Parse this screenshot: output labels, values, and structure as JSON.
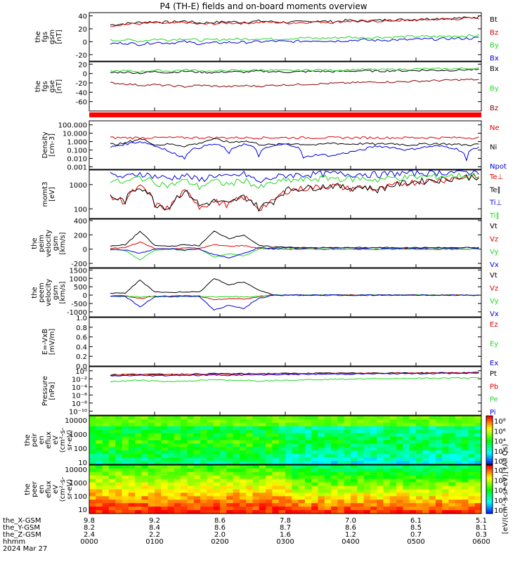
{
  "title": "P4 (TH-E) fields and on-board moments overview",
  "colors": {
    "black": "#000000",
    "red": "#e00000",
    "green": "#22d822",
    "blue": "#0000e0",
    "darkred": "#8b0000"
  },
  "chart_data": [
    {
      "type": "line",
      "id": "fgs_gsm",
      "ylabel": [
        "the",
        "fgs",
        "gsm",
        "[nT]"
      ],
      "ylim": [
        -30,
        45
      ],
      "yticks": [
        "40",
        "20",
        "0",
        "-20"
      ],
      "ytick_values": [
        40,
        20,
        0,
        -20
      ],
      "series": [
        {
          "name": "Bt",
          "color": "black",
          "values": [
            26,
            28,
            30,
            31,
            30,
            32,
            29,
            30,
            31,
            30,
            32,
            31,
            30,
            31,
            32,
            31,
            33,
            32,
            33,
            34,
            34,
            35,
            36,
            36,
            37,
            38
          ]
        },
        {
          "name": "Bz",
          "color": "red",
          "values": [
            25,
            27,
            28,
            29,
            28,
            30,
            27,
            28,
            29,
            29,
            30,
            30,
            29,
            30,
            31,
            30,
            32,
            31,
            32,
            33,
            33,
            34,
            35,
            35,
            36,
            37
          ]
        },
        {
          "name": "By",
          "color": "green",
          "values": [
            2,
            3,
            1,
            4,
            3,
            5,
            2,
            3,
            4,
            4,
            5,
            4,
            5,
            6,
            5,
            6,
            7,
            6,
            7,
            7,
            8,
            8,
            8,
            9,
            9,
            10
          ]
        },
        {
          "name": "Bx",
          "color": "blue",
          "values": [
            -3,
            -2,
            -4,
            -1,
            -2,
            0,
            -3,
            -2,
            -1,
            -1,
            0,
            1,
            0,
            1,
            2,
            1,
            2,
            3,
            2,
            3,
            3,
            4,
            4,
            5,
            5,
            6
          ]
        }
      ]
    },
    {
      "type": "line",
      "id": "fgs_gse",
      "ylabel": [
        "the",
        "fgs",
        "gse",
        "[nT]"
      ],
      "ylim": [
        -80,
        25
      ],
      "yticks": [
        "20",
        "0",
        "-20",
        "-40",
        "-60"
      ],
      "ytick_values": [
        20,
        0,
        -20,
        -40,
        -60
      ],
      "series": [
        {
          "name": "Bx",
          "color": "black",
          "values": [
            2,
            3,
            1,
            4,
            2,
            5,
            3,
            2,
            4,
            3,
            5,
            4,
            3,
            4,
            5,
            4,
            5,
            6,
            5,
            6,
            6,
            7,
            7,
            7,
            8,
            8
          ]
        },
        {
          "name": "By",
          "color": "green",
          "values": [
            5,
            6,
            4,
            7,
            5,
            8,
            6,
            5,
            7,
            6,
            8,
            7,
            6,
            7,
            8,
            7,
            8,
            9,
            8,
            9,
            9,
            10,
            10,
            10,
            11,
            11
          ]
        },
        {
          "name": "Bz",
          "color": "darkred",
          "values": [
            -20,
            -22,
            -25,
            -24,
            -26,
            -28,
            -25,
            -27,
            -28,
            -26,
            -27,
            -25,
            -24,
            -23,
            -22,
            -21,
            -20,
            -19,
            -18,
            -18,
            -17,
            -16,
            -15,
            -14,
            -13,
            -13
          ]
        }
      ]
    },
    {
      "type": "line",
      "id": "density",
      "ylabel": [
        "Density",
        "[cm-3]"
      ],
      "log": true,
      "ylim": [
        0.0005,
        300
      ],
      "yticks": [
        "100.000",
        "10.000",
        "1.000",
        "0.100",
        "0.010",
        "0.001"
      ],
      "ytick_values": [
        100,
        10,
        1,
        0.1,
        0.01,
        0.001
      ],
      "series": [
        {
          "name": "Ne",
          "color": "red",
          "values": [
            3,
            3,
            3,
            3,
            3,
            3,
            3,
            3,
            3,
            3,
            3,
            3,
            3,
            3,
            3,
            3,
            3,
            3,
            3,
            3,
            3,
            3,
            3,
            3,
            3,
            3
          ]
        },
        {
          "name": "Ni",
          "color": "black",
          "values": [
            0.5,
            0.6,
            2,
            0.4,
            0.5,
            0.3,
            0.6,
            2,
            0.8,
            1.2,
            0.5,
            0.4,
            0.6,
            0.5,
            0.4,
            0.7,
            0.5,
            0.6,
            0.5,
            0.6,
            0.4,
            0.5,
            0.6,
            0.5,
            0.4,
            0.5
          ]
        },
        {
          "name": "Npot",
          "color": "blue",
          "values": [
            0.2,
            0.5,
            1,
            0.3,
            0.05,
            0.01,
            0.2,
            0.5,
            0.03,
            0.5,
            0.02,
            0.3,
            0.5,
            0.01,
            0.03,
            0.02,
            0.05,
            0.1,
            0.3,
            0.2,
            0.1,
            0.2,
            0.3,
            0.2,
            0.005,
            0.3
          ]
        }
      ]
    },
    {
      "type": "line",
      "id": "mom_t",
      "ylabel": [
        "momt3",
        "[eV]"
      ],
      "log": true,
      "ylim": [
        40,
        4000
      ],
      "yticks": [
        "1000",
        "100"
      ],
      "ytick_values": [
        1000,
        100
      ],
      "series": [
        {
          "name": "Te⊥",
          "color": "red",
          "values": [
            300,
            200,
            800,
            150,
            100,
            500,
            120,
            200,
            150,
            300,
            100,
            200,
            600,
            700,
            800,
            900,
            700,
            800,
            600,
            900,
            1200,
            1400,
            1500,
            1800,
            2000,
            2100
          ]
        },
        {
          "name": "Te∥",
          "color": "black",
          "values": [
            320,
            210,
            850,
            160,
            110,
            520,
            130,
            210,
            160,
            320,
            110,
            210,
            650,
            720,
            820,
            950,
            720,
            830,
            620,
            940,
            1250,
            1450,
            1550,
            1850,
            2100,
            2200
          ]
        },
        {
          "name": "Ti⊥",
          "color": "blue",
          "values": [
            2500,
            2000,
            3000,
            2200,
            1800,
            2500,
            1500,
            2500,
            2000,
            2800,
            1200,
            2000,
            2500,
            2600,
            2800,
            2900,
            2700,
            2800,
            2600,
            2900,
            3000,
            3100,
            3200,
            3300,
            3400,
            3500
          ]
        },
        {
          "name": "Ti∥",
          "color": "green",
          "values": [
            1500,
            1200,
            2000,
            1300,
            900,
            1500,
            800,
            1400,
            1000,
            1600,
            700,
            1200,
            1500,
            1600,
            1800,
            1900,
            1700,
            1800,
            1600,
            1900,
            2000,
            2100,
            2200,
            2300,
            2400,
            2500
          ]
        }
      ]
    },
    {
      "type": "line",
      "id": "peim_v",
      "ylabel": [
        "the",
        "peim",
        "velocity",
        "gsm",
        "[km/s]"
      ],
      "ylim": [
        -260,
        420
      ],
      "yticks": [
        "400",
        "200",
        "0",
        "-200"
      ],
      "ytick_values": [
        400,
        200,
        0,
        -200
      ],
      "series": [
        {
          "name": "Vt",
          "color": "black",
          "values": [
            40,
            60,
            250,
            50,
            40,
            60,
            50,
            250,
            150,
            200,
            50,
            30,
            30,
            20,
            20,
            20,
            20,
            20,
            20,
            20,
            20,
            20,
            20,
            20,
            20,
            20
          ]
        },
        {
          "name": "Vz",
          "color": "red",
          "values": [
            10,
            20,
            100,
            10,
            0,
            20,
            10,
            60,
            40,
            50,
            10,
            0,
            0,
            0,
            0,
            0,
            0,
            0,
            0,
            0,
            0,
            0,
            0,
            0,
            0,
            0
          ]
        },
        {
          "name": "Vy",
          "color": "green",
          "values": [
            0,
            -20,
            -150,
            -10,
            0,
            -20,
            10,
            -120,
            -60,
            -100,
            0,
            10,
            0,
            10,
            0,
            0,
            0,
            0,
            0,
            0,
            0,
            0,
            0,
            0,
            0,
            0
          ]
        },
        {
          "name": "Vx",
          "color": "blue",
          "values": [
            -5,
            -10,
            -60,
            0,
            5,
            -10,
            0,
            -80,
            -120,
            -60,
            20,
            10,
            20,
            10,
            20,
            10,
            20,
            10,
            20,
            10,
            20,
            10,
            20,
            10,
            20,
            10
          ]
        }
      ]
    },
    {
      "type": "line",
      "id": "peem_v",
      "ylabel": [
        "the",
        "peem",
        "velocity",
        "gsm",
        "[km/s]"
      ],
      "ylim": [
        -1300,
        1600
      ],
      "yticks": [
        "1500",
        "1000",
        "500",
        "0",
        "-500",
        "-1000"
      ],
      "ytick_values": [
        1500,
        1000,
        500,
        0,
        -500,
        -1000
      ],
      "series": [
        {
          "name": "Vt",
          "color": "black",
          "values": [
            100,
            120,
            900,
            200,
            150,
            200,
            180,
            1000,
            600,
            800,
            300,
            0,
            0,
            0,
            0,
            0,
            0,
            0,
            0,
            0,
            0,
            0,
            0,
            0,
            0,
            0
          ]
        },
        {
          "name": "Vz",
          "color": "red",
          "values": [
            -50,
            -40,
            -200,
            -50,
            -60,
            -40,
            -60,
            -300,
            -200,
            -250,
            -100,
            0,
            0,
            0,
            0,
            0,
            0,
            0,
            0,
            0,
            0,
            0,
            0,
            0,
            0,
            0
          ]
        },
        {
          "name": "Vy",
          "color": "green",
          "values": [
            -80,
            -60,
            -100,
            -60,
            -80,
            -60,
            -80,
            -100,
            -90,
            -100,
            -70,
            0,
            0,
            0,
            0,
            0,
            0,
            0,
            0,
            0,
            0,
            0,
            0,
            0,
            0,
            0
          ]
        },
        {
          "name": "Vx",
          "color": "blue",
          "values": [
            -100,
            -80,
            -700,
            -100,
            -90,
            -80,
            -100,
            -900,
            -600,
            -800,
            -200,
            0,
            0,
            0,
            0,
            0,
            0,
            0,
            0,
            0,
            0,
            0,
            0,
            0,
            0,
            0
          ]
        }
      ]
    },
    {
      "type": "line",
      "id": "efield",
      "ylabel": [
        "E=-VxB",
        "[mV/m]"
      ],
      "ylim": [
        0,
        1
      ],
      "yticks": [
        "1.0",
        "0.8",
        "0.6",
        "0.4",
        "0.2",
        "0.0"
      ],
      "ytick_values": [
        1,
        0.8,
        0.6,
        0.4,
        0.2,
        0
      ],
      "series": [
        {
          "name": "Ez",
          "color": "red",
          "values": []
        },
        {
          "name": "Ey",
          "color": "green",
          "values": []
        },
        {
          "name": "Ex",
          "color": "blue",
          "values": []
        }
      ]
    },
    {
      "type": "line",
      "id": "pressure",
      "ylabel": [
        "Pressure",
        "[nPa]"
      ],
      "log": true,
      "ylim": [
        1e-11,
        10
      ],
      "yticks": [
        "10⁰",
        "10⁻²",
        "10⁻⁴",
        "10⁻⁶",
        "10⁻⁸",
        "10⁻¹⁰"
      ],
      "ytick_values": [
        1,
        0.01,
        0.0001,
        1e-06,
        1e-08,
        1e-10
      ],
      "series": [
        {
          "name": "Pt",
          "color": "black",
          "values": [
            0.1,
            0.12,
            0.15,
            0.13,
            0.14,
            0.15,
            0.16,
            0.2,
            0.18,
            0.19,
            0.2,
            0.21,
            0.22,
            0.23,
            0.24,
            0.25,
            0.26,
            0.27,
            0.28,
            0.29,
            0.3,
            0.31,
            0.32,
            0.33,
            0.34,
            0.35
          ]
        },
        {
          "name": "Pb",
          "color": "red",
          "values": [
            0.08,
            0.1,
            0.12,
            0.1,
            0.11,
            0.12,
            0.13,
            0.15,
            0.14,
            0.15,
            0.16,
            0.17,
            0.18,
            0.19,
            0.2,
            0.21,
            0.22,
            0.23,
            0.24,
            0.25,
            0.26,
            0.27,
            0.28,
            0.29,
            0.3,
            0.31
          ]
        },
        {
          "name": "Pe",
          "color": "green",
          "values": [
            0.002,
            0.003,
            0.005,
            0.003,
            0.002,
            0.003,
            0.004,
            0.006,
            0.004,
            0.005,
            0.003,
            0.004,
            0.005,
            0.006,
            0.007,
            0.008,
            0.009,
            0.01,
            0.011,
            0.012,
            0.013,
            0.014,
            0.015,
            0.016,
            0.017,
            0.018
          ]
        },
        {
          "name": "Pi",
          "color": "blue",
          "values": [
            0.05,
            0.06,
            0.07,
            0.06,
            0.07,
            0.08,
            0.07,
            0.09,
            0.08,
            0.09,
            0.1,
            0.11,
            0.12,
            0.13,
            0.14,
            0.15,
            0.16,
            0.17,
            0.18,
            0.19,
            0.2,
            0.21,
            0.22,
            0.23,
            0.24,
            0.25
          ]
        }
      ]
    },
    {
      "type": "heatmap",
      "id": "peir",
      "ylabel": [
        "the",
        "peir",
        "en",
        "eflux",
        "eV",
        "(cm²-s-",
        "sr-eV)"
      ],
      "log": true,
      "ylim": [
        7,
        20000
      ],
      "yticks": [
        "10000",
        "1000",
        "100",
        "10"
      ],
      "ytick_values": [
        10000,
        1000,
        100,
        10
      ],
      "colorbar": [
        "10⁸",
        "10⁶",
        "10⁴",
        "10²",
        "10⁰"
      ],
      "colorbar_label": "[eV/(cm²-s-sr-eV)] (All Qs)"
    },
    {
      "type": "heatmap",
      "id": "peer",
      "ylabel": [
        "the",
        "peer",
        "en",
        "eflux",
        "eV",
        "(cm²-s-",
        "sr-eV)"
      ],
      "log": true,
      "ylim": [
        5,
        20000
      ],
      "yticks": [
        "10000",
        "1000",
        "100",
        "10"
      ],
      "ytick_values": [
        10000,
        1000,
        100,
        10
      ],
      "colorbar": [
        "10⁸",
        "10⁶",
        "10⁴",
        "10²",
        "10⁰"
      ],
      "colorbar_label": "[eV/(cm²-s-sr-eV)]"
    }
  ],
  "ephemeris": {
    "labels": [
      "the_X-GSM",
      "the_Y-GSM",
      "the_Z-GSM",
      "hhmm",
      "2024 Mar 27"
    ],
    "rows": [
      [
        "9.8",
        "9.2",
        "8.6",
        "7.8",
        "7.0",
        "6.1",
        "5.1"
      ],
      [
        "8.2",
        "8.4",
        "8.6",
        "8.7",
        "8.6",
        "8.5",
        "8.1"
      ],
      [
        "2.4",
        "2.2",
        "2.0",
        "1.6",
        "1.2",
        "0.7",
        "0.3"
      ],
      [
        "0000",
        "0100",
        "0200",
        "0300",
        "0400",
        "0500",
        "0600"
      ]
    ]
  }
}
